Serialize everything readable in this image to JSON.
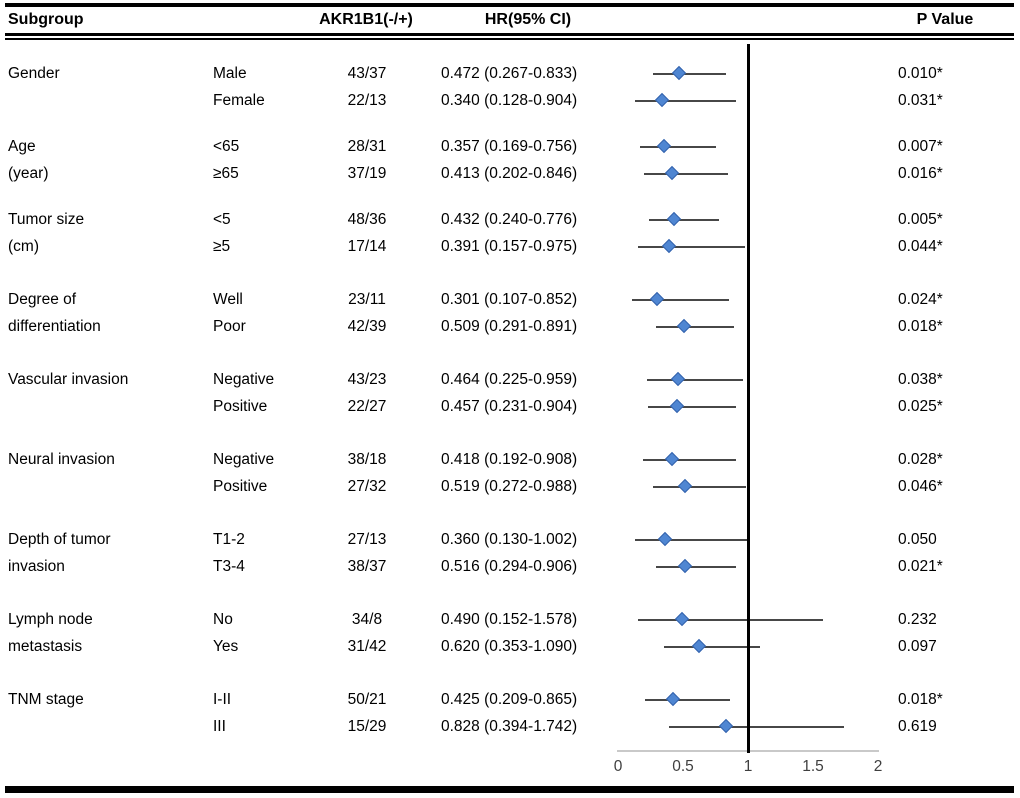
{
  "header": {
    "subgroup": "Subgroup",
    "counts": "AKR1B1(-/+)",
    "hr": "HR(95% CI)",
    "p": "P Value"
  },
  "colors": {
    "diamond_fill": "#4f86d2",
    "diamond_border": "#3564ad",
    "ci_line": "#474747",
    "reference_line": "#000000",
    "axis_line": "#c9c9c9",
    "text": "#000000"
  },
  "chart_data": {
    "type": "forest",
    "columns": [
      "Subgroup",
      "AKR1B1(-/+)",
      "HR(95% CI)",
      "P Value"
    ],
    "x_axis": {
      "min": 0,
      "max": 2,
      "tick_values": [
        0,
        0.5,
        1,
        1.5,
        2
      ],
      "tick_labels": [
        "0",
        "0.5",
        "1",
        "1.5",
        "2"
      ],
      "reference_line": 1
    },
    "groups": [
      {
        "label": [
          "Gender"
        ],
        "rows": [
          {
            "level": "Male",
            "counts": "43/37",
            "hr": 0.472,
            "lo": 0.267,
            "hi": 0.833,
            "hr_label": "0.472 (0.267-0.833)",
            "p": "0.010*"
          },
          {
            "level": "Female",
            "counts": "22/13",
            "hr": 0.34,
            "lo": 0.128,
            "hi": 0.904,
            "hr_label": "0.340 (0.128-0.904)",
            "p": "0.031*"
          }
        ]
      },
      {
        "label": [
          "Age",
          "(year)"
        ],
        "rows": [
          {
            "level": "<65",
            "counts": "28/31",
            "hr": 0.357,
            "lo": 0.169,
            "hi": 0.756,
            "hr_label": "0.357 (0.169-0.756)",
            "p": "0.007*"
          },
          {
            "level": "≥65",
            "counts": "37/19",
            "hr": 0.413,
            "lo": 0.202,
            "hi": 0.846,
            "hr_label": "0.413 (0.202-0.846)",
            "p": "0.016*"
          }
        ]
      },
      {
        "label": [
          "Tumor size",
          "(cm)"
        ],
        "rows": [
          {
            "level": "<5",
            "counts": "48/36",
            "hr": 0.432,
            "lo": 0.24,
            "hi": 0.776,
            "hr_label": "0.432 (0.240-0.776)",
            "p": "0.005*"
          },
          {
            "level": "≥5",
            "counts": "17/14",
            "hr": 0.391,
            "lo": 0.157,
            "hi": 0.975,
            "hr_label": "0.391 (0.157-0.975)",
            "p": "0.044*"
          }
        ]
      },
      {
        "label": [
          "Degree of",
          "differentiation"
        ],
        "rows": [
          {
            "level": "Well",
            "counts": "23/11",
            "hr": 0.301,
            "lo": 0.107,
            "hi": 0.852,
            "hr_label": "0.301 (0.107-0.852)",
            "p": "0.024*"
          },
          {
            "level": "Poor",
            "counts": "42/39",
            "hr": 0.509,
            "lo": 0.291,
            "hi": 0.891,
            "hr_label": "0.509 (0.291-0.891)",
            "p": "0.018*"
          }
        ]
      },
      {
        "label": [
          "Vascular invasion"
        ],
        "rows": [
          {
            "level": "Negative",
            "counts": "43/23",
            "hr": 0.464,
            "lo": 0.225,
            "hi": 0.959,
            "hr_label": "0.464 (0.225-0.959)",
            "p": "0.038*"
          },
          {
            "level": "Positive",
            "counts": "22/27",
            "hr": 0.457,
            "lo": 0.231,
            "hi": 0.904,
            "hr_label": "0.457 (0.231-0.904)",
            "p": "0.025*"
          }
        ]
      },
      {
        "label": [
          "Neural invasion"
        ],
        "rows": [
          {
            "level": "Negative",
            "counts": "38/18",
            "hr": 0.418,
            "lo": 0.192,
            "hi": 0.908,
            "hr_label": "0.418 (0.192-0.908)",
            "p": "0.028*"
          },
          {
            "level": "Positive",
            "counts": "27/32",
            "hr": 0.519,
            "lo": 0.272,
            "hi": 0.988,
            "hr_label": "0.519 (0.272-0.988)",
            "p": "0.046*"
          }
        ]
      },
      {
        "label": [
          "Depth of tumor",
          "invasion"
        ],
        "rows": [
          {
            "level": "T1-2",
            "counts": "27/13",
            "hr": 0.36,
            "lo": 0.13,
            "hi": 1.002,
            "hr_label": "0.360 (0.130-1.002)",
            "p": "0.050"
          },
          {
            "level": "T3-4",
            "counts": "38/37",
            "hr": 0.516,
            "lo": 0.294,
            "hi": 0.906,
            "hr_label": "0.516 (0.294-0.906)",
            "p": "0.021*"
          }
        ]
      },
      {
        "label": [
          "Lymph node",
          "metastasis"
        ],
        "rows": [
          {
            "level": "No",
            "counts": "34/8",
            "hr": 0.49,
            "lo": 0.152,
            "hi": 1.578,
            "hr_label": "0.490 (0.152-1.578)",
            "p": "0.232"
          },
          {
            "level": "Yes",
            "counts": "31/42",
            "hr": 0.62,
            "lo": 0.353,
            "hi": 1.09,
            "hr_label": "0.620 (0.353-1.090)",
            "p": "0.097"
          }
        ]
      },
      {
        "label": [
          "TNM stage"
        ],
        "rows": [
          {
            "level": "I-II",
            "counts": "50/21",
            "hr": 0.425,
            "lo": 0.209,
            "hi": 0.865,
            "hr_label": "0.425 (0.209-0.865)",
            "p": "0.018*"
          },
          {
            "level": "III",
            "counts": "15/29",
            "hr": 0.828,
            "lo": 0.394,
            "hi": 1.742,
            "hr_label": "0.828 (0.394-1.742)",
            "p": "0.619"
          }
        ]
      }
    ]
  }
}
